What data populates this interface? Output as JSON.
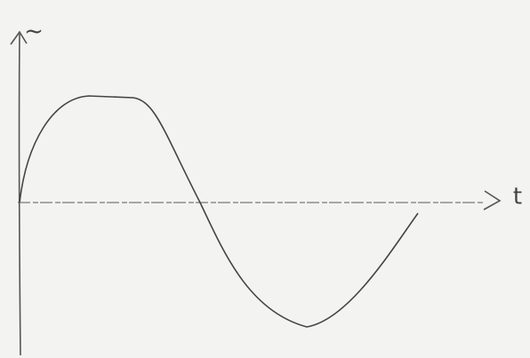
{
  "axes": {
    "y_label": "~",
    "x_label": "t"
  }
}
